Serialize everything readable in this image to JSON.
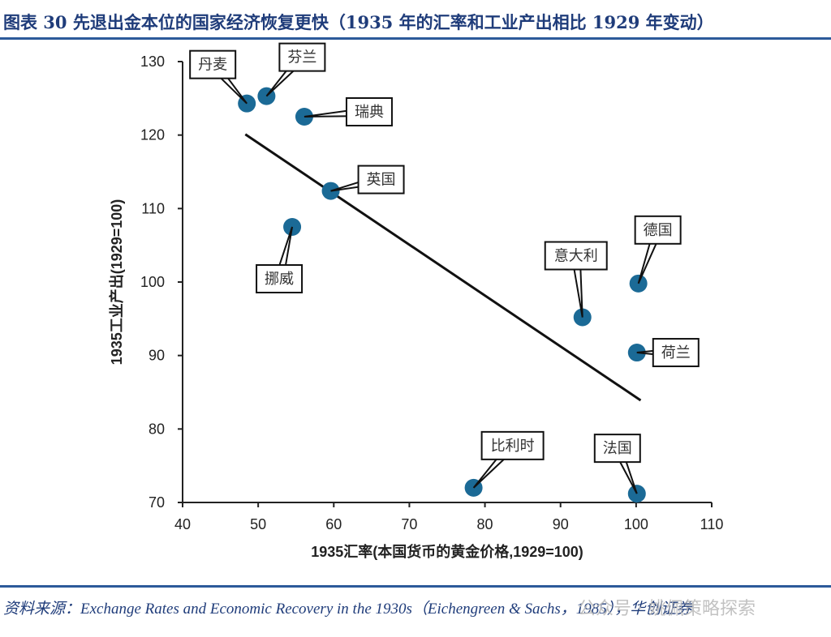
{
  "header": {
    "title": "图表 30   先退出金本位的国家经济恢复更快（1935 年的汇率和工业产出相比 1929 年变动）"
  },
  "footer": {
    "source": "资料来源：Exchange Rates and Economic Recovery in the 1930s（Eichengreen & Sachs，1985），华创证券",
    "watermark": "公众号 · 姚佩策略探索"
  },
  "colors": {
    "point": "#1b6a96",
    "title": "#1f3c7a",
    "rule": "#2c5a9a"
  },
  "chart_data": {
    "type": "scatter",
    "title": "",
    "xlabel": "1935汇率(本国货币的黄金价格,1929=100)",
    "ylabel": "1935工业产出(1929=100)",
    "xlim": [
      40,
      110
    ],
    "ylim": [
      70,
      130
    ],
    "xticks": [
      40,
      50,
      60,
      70,
      80,
      90,
      100,
      110
    ],
    "yticks": [
      70,
      80,
      90,
      100,
      110,
      120,
      130
    ],
    "grid": false,
    "legend": "none",
    "points": [
      {
        "label": "丹麦",
        "x": 48.5,
        "y": 124.3
      },
      {
        "label": "芬兰",
        "x": 51.1,
        "y": 125.3
      },
      {
        "label": "瑞典",
        "x": 56.1,
        "y": 122.5
      },
      {
        "label": "英国",
        "x": 59.6,
        "y": 112.4
      },
      {
        "label": "挪威",
        "x": 54.5,
        "y": 107.5
      },
      {
        "label": "意大利",
        "x": 92.9,
        "y": 95.2
      },
      {
        "label": "德国",
        "x": 100.3,
        "y": 99.8
      },
      {
        "label": "荷兰",
        "x": 100.1,
        "y": 90.4
      },
      {
        "label": "比利时",
        "x": 78.5,
        "y": 72.0
      },
      {
        "label": "法国",
        "x": 100.1,
        "y": 71.2
      }
    ],
    "trendline": {
      "x": [
        48.3,
        100.6
      ],
      "y": [
        120.1,
        83.9
      ]
    }
  }
}
